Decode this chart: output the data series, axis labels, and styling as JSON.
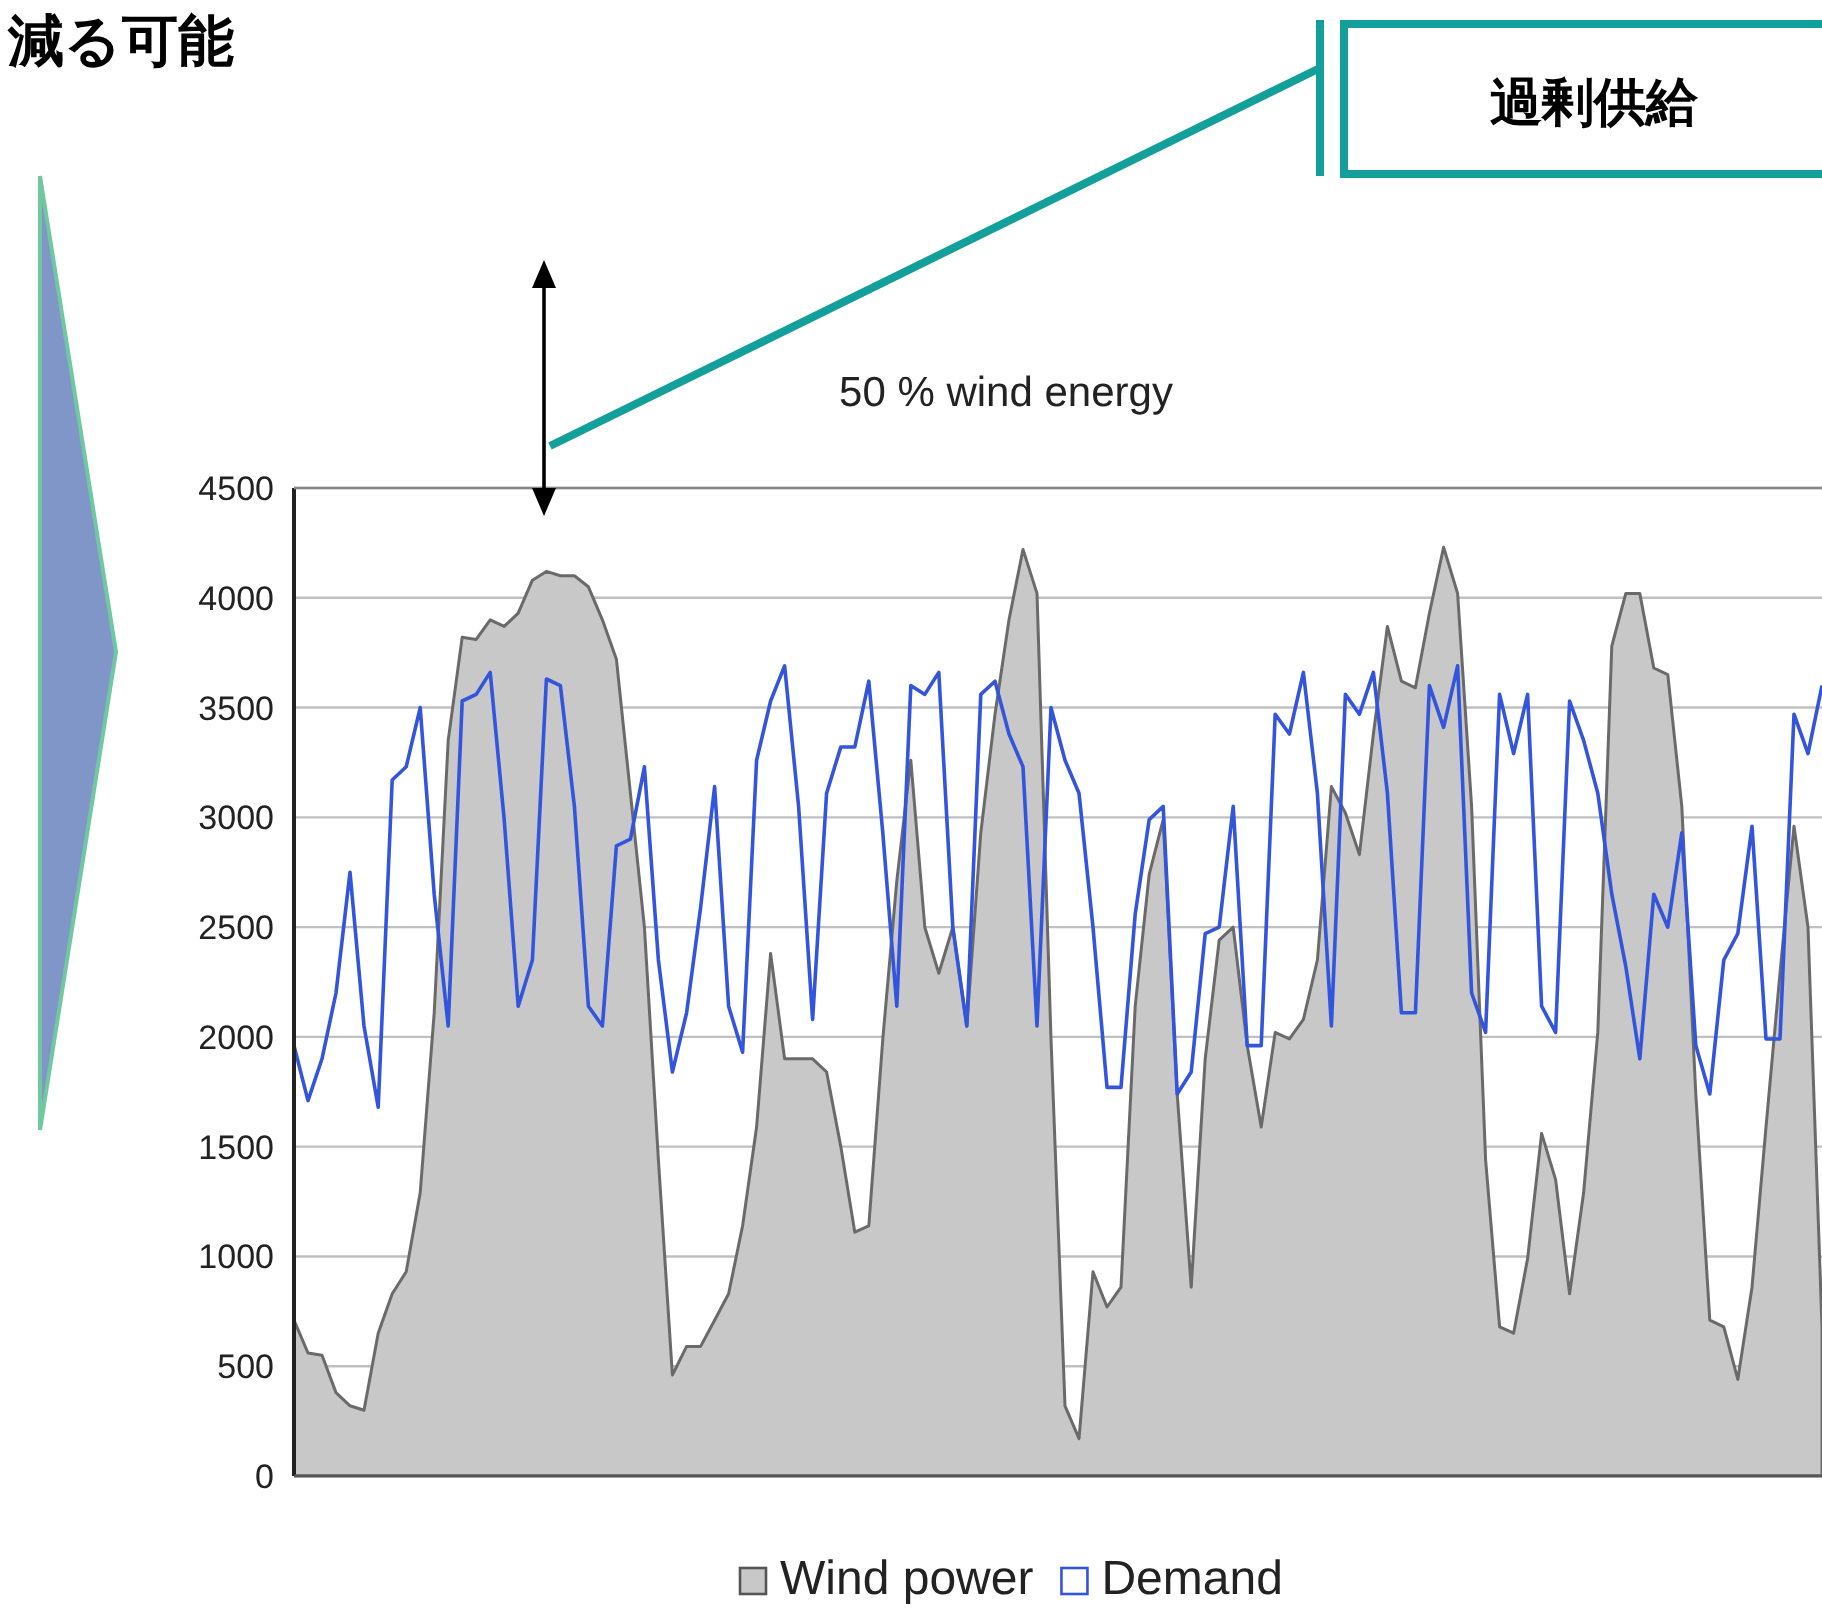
{
  "chart_data": {
    "type": "area",
    "categories": [
      null,
      null,
      null,
      null,
      null,
      null,
      null,
      null,
      null,
      null,
      null,
      null,
      null,
      null,
      null,
      null,
      null,
      null,
      null,
      null,
      null,
      null,
      null,
      null,
      null,
      null,
      null,
      null,
      null,
      null,
      null,
      null,
      null,
      null,
      null,
      null,
      null,
      null,
      null,
      null,
      null,
      null,
      null,
      null,
      null,
      null,
      null,
      null,
      null,
      null,
      null,
      null,
      null,
      null,
      null,
      null,
      null,
      null,
      null,
      null,
      null,
      null,
      null,
      null,
      null,
      null,
      null,
      null,
      null,
      null,
      null,
      null,
      null,
      null,
      null,
      null,
      null,
      null,
      null,
      null,
      null,
      null,
      null,
      null,
      null,
      null,
      null,
      null,
      null,
      null,
      null,
      null,
      null,
      null,
      null,
      null,
      null,
      null,
      null,
      null,
      null,
      null,
      null,
      null,
      null,
      null,
      null,
      null,
      null,
      null
    ],
    "ylim": [
      0,
      4500
    ],
    "yticks": [
      0,
      500,
      1000,
      1500,
      2000,
      2500,
      3000,
      3500,
      4000,
      4500
    ],
    "grid": "y",
    "legend": "bottom",
    "annotations": [
      "50 % wind energy",
      "過剰供給",
      "減る可能"
    ],
    "series": [
      {
        "name": "Wind power",
        "color": "#c8c8c8",
        "values": [
          710,
          560,
          550,
          380,
          320,
          300,
          650,
          830,
          930,
          1290,
          2110,
          3350,
          3820,
          3810,
          3900,
          3870,
          3930,
          4080,
          4120,
          4100,
          4100,
          4050,
          3900,
          3720,
          3110,
          2500,
          1440,
          460,
          590,
          590,
          710,
          830,
          1140,
          1590,
          2380,
          1900,
          1900,
          1900,
          1840,
          1500,
          1110,
          1140,
          1990,
          2710,
          3260,
          2500,
          2290,
          2500,
          2050,
          2930,
          3470,
          3900,
          4220,
          4020,
          1990,
          320,
          170,
          930,
          770,
          860,
          2140,
          2740,
          2990,
          1740,
          860,
          1900,
          2440,
          2500,
          1960,
          1590,
          2020,
          1990,
          2080,
          2350,
          3140,
          3020,
          2830,
          3380,
          3870,
          3620,
          3590,
          3930,
          4230,
          4020,
          3050,
          1440,
          680,
          650,
          990,
          1560,
          1350,
          830,
          1290,
          2020,
          3780,
          4020,
          4020,
          3680,
          3650,
          3050,
          1740,
          710,
          680,
          440,
          860,
          1590,
          2290,
          2960,
          2500,
          680
        ]
      },
      {
        "name": "Demand",
        "type": "line",
        "color": "#3355dd",
        "values": [
          1960,
          1710,
          1900,
          2200,
          2750,
          2050,
          1680,
          3170,
          3230,
          3500,
          2650,
          2050,
          3530,
          3560,
          3660,
          2990,
          2140,
          2350,
          3630,
          3600,
          3050,
          2140,
          2050,
          2870,
          2900,
          3230,
          2350,
          1840,
          2110,
          2590,
          3140,
          2140,
          1930,
          3260,
          3530,
          3690,
          3050,
          2080,
          3110,
          3320,
          3320,
          3620,
          2930,
          2140,
          3600,
          3560,
          3660,
          2500,
          2050,
          3560,
          3620,
          3380,
          3230,
          2050,
          3500,
          3260,
          3110,
          2500,
          1770,
          1770,
          2560,
          2990,
          3050,
          1740,
          1840,
          2470,
          2500,
          3050,
          1960,
          1960,
          3470,
          3380,
          3660,
          3110,
          2050,
          3560,
          3470,
          3660,
          3110,
          2110,
          2110,
          3600,
          3410,
          3690,
          2200,
          2020,
          3560,
          3290,
          3560,
          2140,
          2020,
          3530,
          3350,
          3110,
          2650,
          2320,
          1900,
          2650,
          2500,
          2930,
          1960,
          1740,
          2350,
          2470,
          2960,
          1990,
          1990,
          3470,
          3290,
          3600
        ]
      }
    ]
  }
}
